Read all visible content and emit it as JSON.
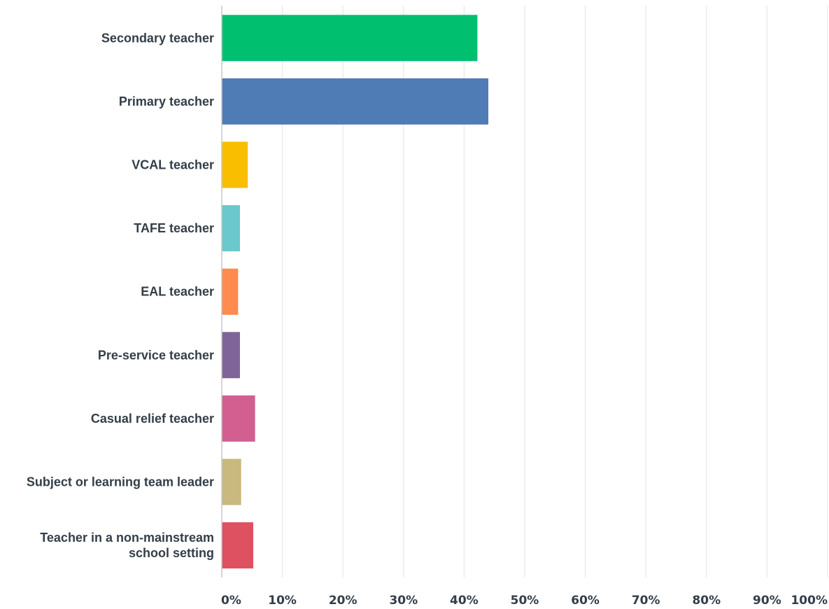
{
  "chart_data": {
    "type": "bar",
    "orientation": "horizontal",
    "title": "",
    "xlabel": "",
    "ylabel": "",
    "xlim": [
      0,
      100
    ],
    "grid": true,
    "legend": "none",
    "ticks": [
      "0%",
      "10%",
      "20%",
      "30%",
      "40%",
      "50%",
      "60%",
      "70%",
      "80%",
      "90%",
      "100%"
    ],
    "categories": [
      [
        "Secondary teacher"
      ],
      [
        "Primary teacher"
      ],
      [
        "VCAL teacher"
      ],
      [
        "TAFE teacher"
      ],
      [
        "EAL teacher"
      ],
      [
        "Pre-service teacher"
      ],
      [
        "Casual relief teacher"
      ],
      [
        "Subject or learning team leader"
      ],
      [
        "Teacher in a non-mainstream",
        "school setting"
      ]
    ],
    "values": [
      42.2,
      44.0,
      4.3,
      3.0,
      2.7,
      3.0,
      5.5,
      3.2,
      5.2
    ],
    "colors": [
      "#00bf6f",
      "#507cb6",
      "#f9be00",
      "#6bc8cd",
      "#ff8b4f",
      "#7f6499",
      "#d25f90",
      "#c9b97e",
      "#dd5161"
    ]
  }
}
